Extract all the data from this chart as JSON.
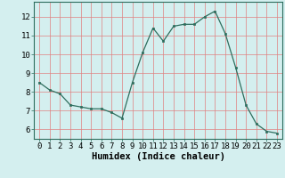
{
  "xlabel": "Humidex (Indice chaleur)",
  "x": [
    0,
    1,
    2,
    3,
    4,
    5,
    6,
    7,
    8,
    9,
    10,
    11,
    12,
    13,
    14,
    15,
    16,
    17,
    18,
    19,
    20,
    21,
    22,
    23
  ],
  "y": [
    8.5,
    8.1,
    7.9,
    7.3,
    7.2,
    7.1,
    7.1,
    6.9,
    6.6,
    8.5,
    10.1,
    11.4,
    10.7,
    11.5,
    11.6,
    11.6,
    12.0,
    12.3,
    11.1,
    9.3,
    7.3,
    6.3,
    5.9,
    5.8
  ],
  "ylim": [
    5.5,
    12.8
  ],
  "yticks": [
    6,
    7,
    8,
    9,
    10,
    11,
    12
  ],
  "line_color": "#2e6e5e",
  "marker_color": "#2e6e5e",
  "bg_color": "#d4efef",
  "grid_color_major": "#c8b8b8",
  "grid_color_minor": "#ddd0d0",
  "label_fontsize": 7.5,
  "tick_fontsize": 6.5
}
